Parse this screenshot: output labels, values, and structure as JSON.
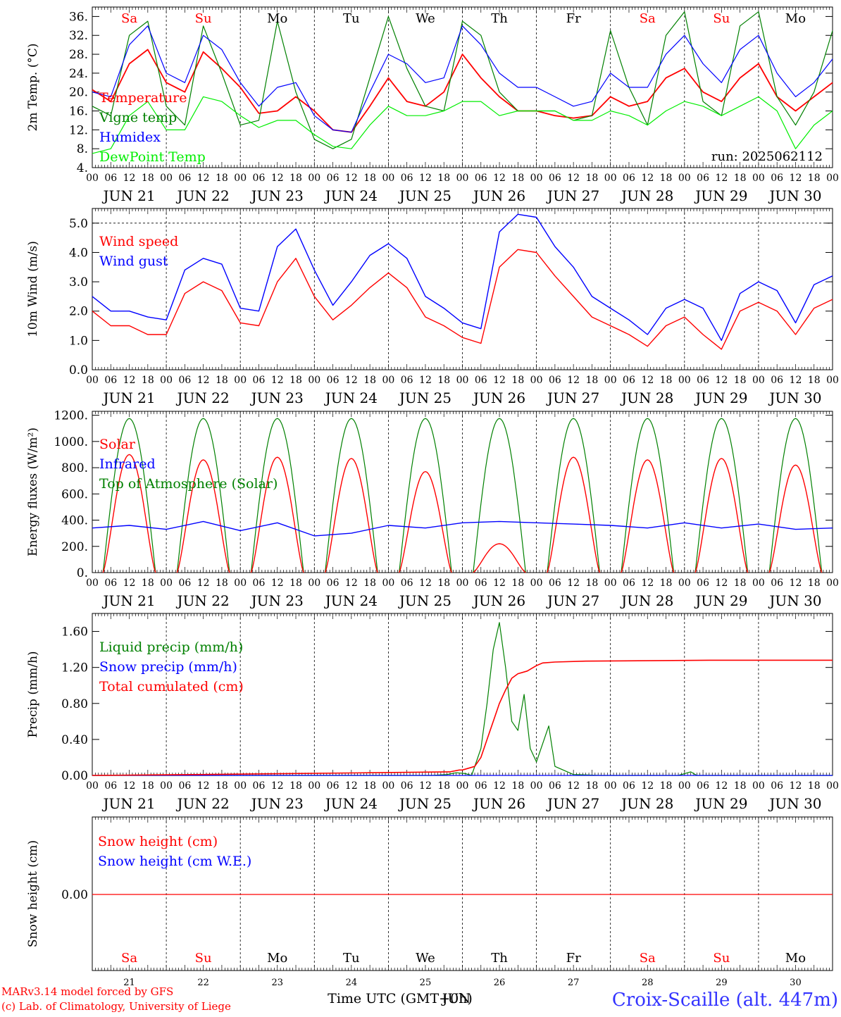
{
  "run_label": "run: 2025062112",
  "time_axis": {
    "hour_labels": [
      "00",
      "06",
      "12",
      "18"
    ],
    "final_hour_label": "00",
    "dates": [
      "JUN 21",
      "JUN 22",
      "JUN 23",
      "JUN 24",
      "JUN 25",
      "JUN 26",
      "JUN 27",
      "JUN 28",
      "JUN 29",
      "JUN 30"
    ],
    "days": [
      "Sa",
      "Su",
      "Mo",
      "Tu",
      "We",
      "Th",
      "Fr",
      "Sa",
      "Su",
      "Mo"
    ],
    "weekend_flags": [
      true,
      true,
      false,
      false,
      false,
      false,
      false,
      true,
      true,
      false
    ],
    "day_numbers": [
      "21",
      "22",
      "23",
      "24",
      "25",
      "26",
      "27",
      "28",
      "29",
      "30"
    ],
    "xlabel": "Time UTC (GMT+0h)",
    "overlap_label": "JUN"
  },
  "footer": {
    "credit_line1": "MARv3.14 model forced by GFS",
    "credit_line2": "(c) Lab. of Climatology, University of Liege",
    "station": "Croix-Scaille (alt. 447m)"
  },
  "colors": {
    "red": "#ff0000",
    "green": "#008000",
    "blue": "#0000ff",
    "lightgreen": "#00ee00",
    "station": "#3333ff"
  },
  "chart_data": [
    {
      "id": "temp",
      "type": "line",
      "ylabel": "2m Temp. (°C)",
      "ylim": [
        4,
        38
      ],
      "ticks": [
        4,
        8,
        12,
        16,
        20,
        24,
        28,
        32,
        36
      ],
      "tick_labels": [
        "4.",
        "8.",
        "12.",
        "16.",
        "20.",
        "24.",
        "28.",
        "32.",
        "36."
      ],
      "x_hours": [
        0,
        6,
        12,
        18,
        24,
        30,
        36,
        42,
        48,
        54,
        60,
        66,
        72,
        78,
        84,
        90,
        96,
        102,
        108,
        114,
        120,
        126,
        132,
        138,
        144,
        150,
        156,
        162,
        168,
        174,
        180,
        186,
        192,
        198,
        204,
        210,
        216,
        222,
        228,
        234,
        240
      ],
      "series": [
        {
          "name": "Temperature",
          "color": "red",
          "values": [
            20.5,
            18,
            26,
            29,
            22,
            20,
            28.5,
            25,
            21,
            15.5,
            16,
            19,
            16,
            12,
            11.5,
            17,
            23,
            18,
            17,
            20,
            28,
            23,
            19,
            16,
            16,
            15,
            14.5,
            15,
            19,
            17,
            18,
            23,
            25,
            20,
            18,
            23,
            26,
            19,
            16,
            19,
            22
          ]
        },
        {
          "name": "Vigne temp",
          "color": "green",
          "values": [
            17,
            15,
            32,
            35,
            17,
            13,
            34,
            24,
            13,
            14,
            35,
            20,
            10,
            8,
            10,
            23,
            36,
            25,
            17,
            16,
            35,
            32,
            20,
            16,
            16,
            16,
            14,
            15,
            33,
            21,
            13,
            32,
            37,
            18,
            15,
            34,
            37,
            19,
            13,
            20,
            33
          ]
        },
        {
          "name": "Humidex",
          "color": "blue",
          "values": [
            20,
            19,
            30,
            34,
            24,
            22,
            32,
            29,
            22,
            17,
            21,
            22,
            15,
            12,
            11.5,
            20,
            28,
            26,
            22,
            23,
            34,
            30,
            24,
            21,
            21,
            19,
            17,
            18,
            24,
            21,
            21,
            28,
            32,
            26,
            22,
            29,
            32,
            24,
            19,
            22,
            27
          ]
        },
        {
          "name": "DewPoint Temp",
          "color": "lightgreen",
          "values": [
            7,
            8,
            15,
            18,
            12,
            12,
            19,
            18,
            15,
            12.5,
            14,
            14,
            11,
            8.5,
            8,
            13,
            17,
            15,
            15,
            16,
            18,
            18,
            15,
            16,
            16,
            16,
            14,
            14,
            16,
            15,
            13,
            16,
            18,
            17,
            15,
            17,
            19,
            16,
            8,
            13,
            16
          ]
        }
      ]
    },
    {
      "id": "wind",
      "type": "line",
      "ylabel": "10m Wind (m/s)",
      "ylim": [
        0,
        5.5
      ],
      "ticks": [
        0,
        1,
        2,
        3,
        4,
        5
      ],
      "tick_labels": [
        "0.0",
        "1.0",
        "2.0",
        "3.0",
        "4.0",
        "5.0"
      ],
      "ref_line": 5.0,
      "x_hours": [
        0,
        6,
        12,
        18,
        24,
        30,
        36,
        42,
        48,
        54,
        60,
        66,
        72,
        78,
        84,
        90,
        96,
        102,
        108,
        114,
        120,
        126,
        132,
        138,
        144,
        150,
        156,
        162,
        168,
        174,
        180,
        186,
        192,
        198,
        204,
        210,
        216,
        222,
        228,
        234,
        240
      ],
      "series": [
        {
          "name": "Wind speed",
          "color": "red",
          "values": [
            2.0,
            1.5,
            1.5,
            1.2,
            1.2,
            2.6,
            3.0,
            2.7,
            1.6,
            1.5,
            3.0,
            3.8,
            2.5,
            1.7,
            2.2,
            2.8,
            3.3,
            2.8,
            1.8,
            1.5,
            1.1,
            0.9,
            3.5,
            4.1,
            4.0,
            3.2,
            2.5,
            1.8,
            1.5,
            1.2,
            0.8,
            1.5,
            1.8,
            1.2,
            0.7,
            2.0,
            2.3,
            2.0,
            1.2,
            2.1,
            2.4
          ]
        },
        {
          "name": "Wind gust",
          "color": "blue",
          "values": [
            2.5,
            2.0,
            2.0,
            1.8,
            1.7,
            3.4,
            3.8,
            3.6,
            2.1,
            2.0,
            4.2,
            4.8,
            3.4,
            2.2,
            3.0,
            3.9,
            4.3,
            3.8,
            2.5,
            2.1,
            1.6,
            1.4,
            4.7,
            5.3,
            5.2,
            4.2,
            3.5,
            2.5,
            2.1,
            1.7,
            1.2,
            2.1,
            2.4,
            2.1,
            1.0,
            2.6,
            3.0,
            2.7,
            1.6,
            2.9,
            3.2
          ]
        }
      ]
    },
    {
      "id": "energy",
      "type": "line",
      "ylabel": "Energy fluxes (W/m²)",
      "ylim": [
        0,
        1230
      ],
      "ticks": [
        0,
        200,
        400,
        600,
        800,
        1000,
        1200
      ],
      "tick_labels": [
        "0.",
        "200.",
        "400.",
        "600.",
        "800.",
        "1000.",
        "1200."
      ],
      "solar_peaks": [
        900,
        860,
        880,
        870,
        770,
        220,
        880,
        860,
        870,
        820
      ],
      "toa_peak": 1175,
      "toa_daylight_hours": [
        3.5,
        20.5
      ],
      "infrared": {
        "x_hours": [
          0,
          12,
          24,
          36,
          48,
          60,
          72,
          84,
          96,
          108,
          120,
          132,
          144,
          156,
          168,
          180,
          192,
          204,
          216,
          228,
          240
        ],
        "values": [
          340,
          360,
          330,
          390,
          320,
          380,
          280,
          300,
          360,
          340,
          380,
          390,
          380,
          370,
          360,
          340,
          380,
          340,
          370,
          330,
          340
        ]
      },
      "series": [
        {
          "name": "Solar",
          "color": "red"
        },
        {
          "name": "Infrared",
          "color": "blue"
        },
        {
          "name": "Top of Atmosphere (Solar)",
          "color": "green"
        }
      ]
    },
    {
      "id": "precip",
      "type": "line",
      "ylabel": "Precip (mm/h)",
      "ylim": [
        0,
        1.8
      ],
      "ticks": [
        0,
        0.4,
        0.8,
        1.2,
        1.6
      ],
      "tick_labels": [
        "0.00",
        "0.40",
        "0.80",
        "1.20",
        "1.60"
      ],
      "liquid": {
        "x_hours": [
          0,
          110,
          115,
          118,
          121,
          123,
          126,
          128,
          130,
          132,
          134,
          136,
          138,
          140,
          142,
          144,
          148,
          150,
          156,
          165,
          166,
          190,
          194,
          196,
          240
        ],
        "values": [
          0,
          0,
          0.01,
          0.03,
          0.02,
          0,
          0.3,
          0.8,
          1.4,
          1.7,
          1.2,
          0.6,
          0.5,
          0.9,
          0.3,
          0.15,
          0.55,
          0.1,
          0.01,
          0,
          0,
          0,
          0.04,
          0,
          0
        ]
      },
      "cumulated": {
        "x_hours": [
          0,
          36,
          90,
          116,
          119,
          120,
          124,
          126,
          128,
          130,
          132,
          134,
          136,
          138,
          141,
          144,
          146,
          150,
          160,
          200,
          240
        ],
        "values": [
          0,
          0.01,
          0.03,
          0.04,
          0.06,
          0.06,
          0.1,
          0.2,
          0.4,
          0.6,
          0.8,
          0.95,
          1.08,
          1.13,
          1.16,
          1.22,
          1.25,
          1.26,
          1.27,
          1.28,
          1.28
        ]
      },
      "series": [
        {
          "name": "Liquid precip (mm/h)",
          "color": "green"
        },
        {
          "name": "Snow precip (mm/h)",
          "color": "blue"
        },
        {
          "name": "Total cumulated (cm)",
          "color": "red"
        }
      ]
    },
    {
      "id": "snow",
      "type": "line",
      "ylabel": "Snow height (cm)",
      "tick_labels": [
        "0.00"
      ],
      "value": 0.0,
      "series": [
        {
          "name": "Snow height (cm)",
          "color": "red"
        },
        {
          "name": "Snow height (cm W.E.)",
          "color": "blue"
        }
      ]
    }
  ]
}
